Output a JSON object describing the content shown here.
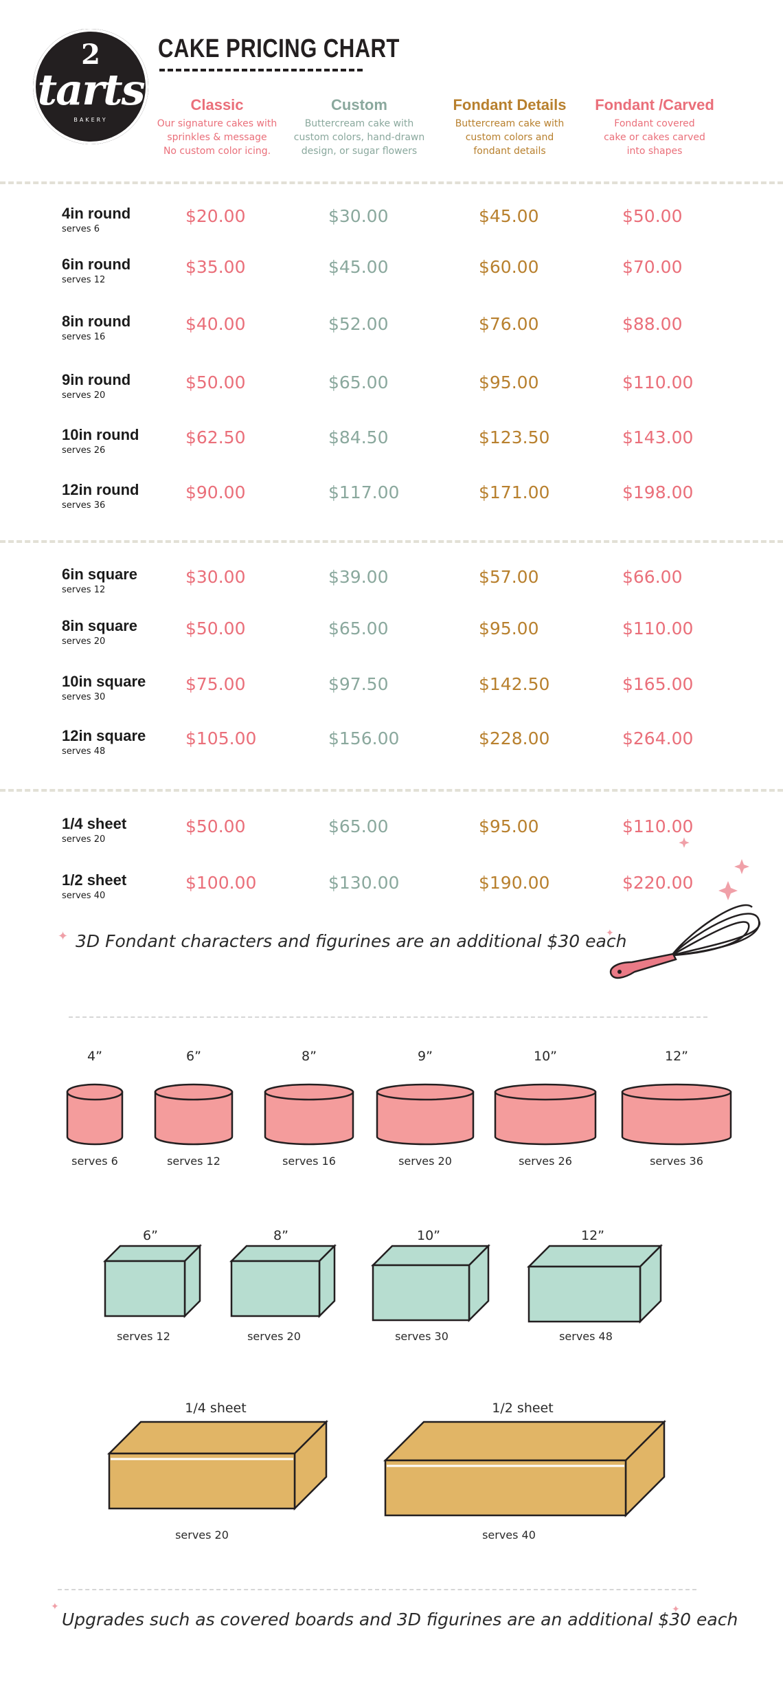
{
  "logo": {
    "number": "2",
    "word": "tarts",
    "subtitle": "BAKERY"
  },
  "title": "CAKE PRICING CHART",
  "columns": [
    {
      "name": "Classic",
      "desc": [
        "Our signature cakes with",
        "sprinkles & message",
        "No custom color icing."
      ],
      "color": "#ea6f7a"
    },
    {
      "name": "Custom",
      "desc": [
        "Buttercream cake with",
        "custom colors, hand-drawn",
        "design, or sugar flowers"
      ],
      "color": "#8aa89d"
    },
    {
      "name": "Fondant Details",
      "desc": [
        "Buttercream cake with",
        "custom colors and",
        "fondant details"
      ],
      "color": "#b8802e"
    },
    {
      "name": "Fondant /Carved",
      "desc": [
        "Fondant covered",
        "cake or cakes carved",
        "into shapes"
      ],
      "color": "#ea6f7a"
    }
  ],
  "rows": [
    {
      "size": "4in round",
      "serves": "serves 6",
      "prices": [
        "$20.00",
        "$30.00",
        "$45.00",
        "$50.00"
      ]
    },
    {
      "size": "6in round",
      "serves": "serves 12",
      "prices": [
        "$35.00",
        "$45.00",
        "$60.00",
        "$70.00"
      ]
    },
    {
      "size": "8in round",
      "serves": "serves 16",
      "prices": [
        "$40.00",
        "$52.00",
        "$76.00",
        "$88.00"
      ]
    },
    {
      "size": "9in round",
      "serves": "serves 20",
      "prices": [
        "$50.00",
        "$65.00",
        "$95.00",
        "$110.00"
      ]
    },
    {
      "size": "10in round",
      "serves": "serves 26",
      "prices": [
        "$62.50",
        "$84.50",
        "$123.50",
        "$143.00"
      ]
    },
    {
      "size": "12in round",
      "serves": "serves 36",
      "prices": [
        "$90.00",
        "$117.00",
        "$171.00",
        "$198.00"
      ]
    },
    {
      "size": "6in square",
      "serves": "serves 12",
      "prices": [
        "$30.00",
        "$39.00",
        "$57.00",
        "$66.00"
      ]
    },
    {
      "size": "8in square",
      "serves": "serves 20",
      "prices": [
        "$50.00",
        "$65.00",
        "$95.00",
        "$110.00"
      ]
    },
    {
      "size": "10in square",
      "serves": "serves 30",
      "prices": [
        "$75.00",
        "$97.50",
        "$142.50",
        "$165.00"
      ]
    },
    {
      "size": "12in square",
      "serves": "serves 48",
      "prices": [
        "$105.00",
        "$156.00",
        "$228.00",
        "$264.00"
      ]
    },
    {
      "size": "1/4 sheet",
      "serves": "serves 20",
      "prices": [
        "$50.00",
        "$65.00",
        "$95.00",
        "$110.00"
      ]
    },
    {
      "size": "1/2 sheet",
      "serves": "serves 40",
      "prices": [
        "$100.00",
        "$130.00",
        "$190.00",
        "$220.00"
      ]
    }
  ],
  "note_figurines": "3D Fondant characters and figurines are an additional $30 each",
  "round_cakes": [
    {
      "label": "4”",
      "serves": "serves 6"
    },
    {
      "label": "6”",
      "serves": "serves 12"
    },
    {
      "label": "8”",
      "serves": "serves 16"
    },
    {
      "label": "9”",
      "serves": "serves 20"
    },
    {
      "label": "10”",
      "serves": "serves 26"
    },
    {
      "label": "12”",
      "serves": "serves 36"
    }
  ],
  "square_cakes": [
    {
      "label": "6”",
      "serves": "serves 12"
    },
    {
      "label": "8”",
      "serves": "serves 20"
    },
    {
      "label": "10”",
      "serves": "serves 30"
    },
    {
      "label": "12”",
      "serves": "serves 48"
    }
  ],
  "sheet_cakes": [
    {
      "label": "1/4 sheet",
      "serves": "serves 20"
    },
    {
      "label": "1/2 sheet",
      "serves": "serves 40"
    }
  ],
  "note_upgrades": "Upgrades such as covered boards and 3D figurines are an additional $30 each",
  "colors": {
    "pink": "#ea6f7a",
    "sage": "#8aa89d",
    "gold": "#b8802e",
    "round_fill": "#f49c9c",
    "square_fill": "#b7ddd0",
    "sheet_fill": "#e1b566",
    "ink": "#231f20"
  }
}
